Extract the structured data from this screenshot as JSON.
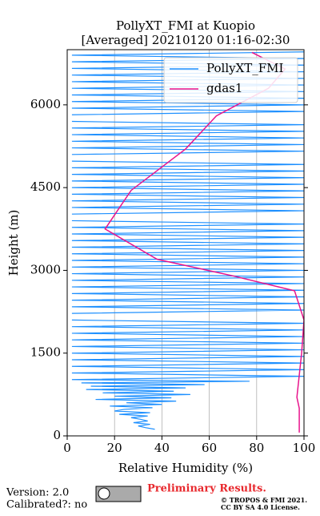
{
  "chart_data": {
    "type": "profile",
    "title": "PollyXT_FMI at Kuopio",
    "subtitle": "[Averaged] 20210120 01:16-02:30",
    "xlabel": "Relative Humidity (%)",
    "ylabel": "Height (m)",
    "xlim": [
      0,
      100
    ],
    "ylim": [
      0,
      7000
    ],
    "xticks": [
      0,
      20,
      40,
      60,
      80,
      100
    ],
    "yticks": [
      0,
      1500,
      3000,
      4500,
      6000
    ],
    "grid": true,
    "legend": "upper right",
    "series": [
      {
        "name": "PollyXT_FMI",
        "color": "#1e90ff",
        "heights": [
          120,
          150,
          180,
          210,
          240,
          270,
          300,
          330,
          360,
          390,
          420,
          450,
          480,
          510,
          540,
          570,
          600,
          630,
          660,
          690,
          720,
          750,
          780,
          810,
          840,
          870,
          900,
          930,
          960,
          990,
          1020,
          1080,
          1140,
          1200,
          1260,
          1320,
          1380,
          1440,
          1500,
          1560,
          1620,
          1680,
          1740,
          1800,
          1860,
          1920,
          1980,
          2040,
          2100,
          2160,
          2220,
          2280,
          2340,
          2400,
          2460,
          2520,
          2580,
          2640,
          2700,
          2760,
          2820,
          2880,
          2940,
          3000,
          3060,
          3120,
          3180,
          3240,
          3300,
          3360,
          3420,
          3480,
          3540,
          3600,
          3660,
          3720,
          3780,
          3840,
          3900,
          3960,
          4020,
          4080,
          4140,
          4200,
          4260,
          4320,
          4380,
          4440,
          4500,
          4560,
          4620,
          4680,
          4740,
          4800,
          4860,
          4920,
          4980,
          5040,
          5100,
          5160,
          5220,
          5280,
          5340,
          5400,
          5460,
          5520,
          5580,
          5640,
          5700,
          5760,
          5820,
          5880,
          5940,
          6000,
          6060,
          6120,
          6180,
          6240,
          6300,
          6360,
          6420,
          6480,
          6540,
          6600,
          6660,
          6720,
          6780,
          6840,
          6900,
          6960
        ],
        "values": [
          37,
          33,
          30,
          35,
          28,
          34,
          31,
          27,
          34,
          22,
          35,
          20,
          24,
          36,
          18,
          40,
          25,
          46,
          12,
          44,
          20,
          52,
          15,
          45,
          8,
          50,
          10,
          58,
          6,
          77,
          2,
          100,
          2,
          100,
          2,
          100,
          2,
          100,
          2,
          100,
          2,
          100,
          2,
          100,
          2,
          100,
          2,
          100,
          2,
          null,
          2,
          100,
          2,
          100,
          2,
          100,
          2,
          100,
          2,
          100,
          2,
          100,
          2,
          100,
          2,
          100,
          2,
          100,
          2,
          100,
          2,
          100,
          2,
          100,
          2,
          100,
          2,
          100,
          2,
          null,
          2,
          100,
          2,
          100,
          2,
          100,
          2,
          100,
          2,
          100,
          2,
          100,
          2,
          100,
          2,
          100,
          2,
          null,
          2,
          100,
          2,
          100,
          2,
          100,
          2,
          100,
          2,
          100,
          2,
          null,
          2,
          100,
          2,
          100,
          2,
          100,
          2,
          100,
          2,
          100,
          2,
          100,
          2,
          100,
          2,
          100,
          2,
          100,
          2,
          100
        ]
      },
      {
        "name": "gdas1",
        "color": "#e8148c",
        "heights": [
          60,
          500,
          700,
          1500,
          2100,
          2630,
          2900,
          3200,
          3750,
          4450,
          5200,
          5800,
          6300,
          6650,
          6950
        ],
        "values": [
          98,
          98,
          97,
          99,
          100,
          96,
          70,
          38,
          16,
          27,
          50,
          63,
          85,
          92,
          78
        ]
      }
    ],
    "footer": {
      "version": "Version: 2.0",
      "calibrated": "Calibrated?: no",
      "status": "Preliminary Results.",
      "copyright": "© TROPOS & FMI 2021.",
      "license": "CC BY SA 4.0 License."
    }
  }
}
